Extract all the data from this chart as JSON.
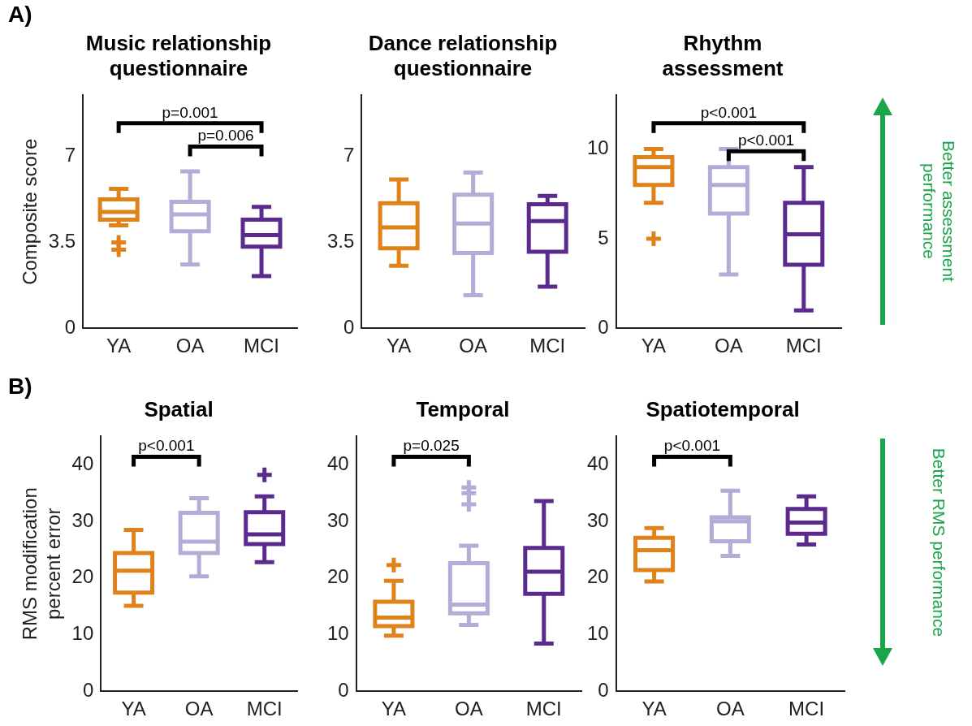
{
  "chart_data": [
    {
      "type": "box",
      "title": "Music relationship questionnaire",
      "ylabel": "Composite score",
      "categories": [
        "YA",
        "OA",
        "MCI"
      ],
      "colors": [
        "#e0821a",
        "#b3acd6",
        "#5b2a8e"
      ],
      "ylim": [
        0,
        9.5
      ],
      "yticks": [
        0,
        3.5,
        7
      ],
      "annotations": [
        "A)",
        "p=0.001",
        "p=0.006"
      ],
      "boxes": [
        {
          "low": 4.2,
          "q1": 4.43,
          "median": 4.74,
          "q3": 5.26,
          "high": 5.69,
          "outliers": [
            3.5,
            3.2
          ]
        },
        {
          "low": 2.6,
          "q1": 3.96,
          "median": 4.64,
          "q3": 5.16,
          "high": 6.4
        },
        {
          "low": 2.13,
          "q1": 3.33,
          "median": 3.8,
          "q3": 4.43,
          "high": 4.95
        }
      ]
    },
    {
      "type": "box",
      "title": "Dance relationship questionnaire",
      "categories": [
        "YA",
        "OA",
        "MCI"
      ],
      "colors": [
        "#e0821a",
        "#b3acd6",
        "#5b2a8e"
      ],
      "ylim": [
        0,
        9.5
      ],
      "yticks": [
        0,
        3.5,
        7
      ],
      "boxes": [
        {
          "low": 2.55,
          "q1": 3.26,
          "median": 4.11,
          "q3": 5.1,
          "high": 6.07
        },
        {
          "low": 1.35,
          "q1": 3.07,
          "median": 4.27,
          "q3": 5.45,
          "high": 6.35
        },
        {
          "low": 1.7,
          "q1": 3.12,
          "median": 4.37,
          "q3": 5.06,
          "high": 5.4
        }
      ]
    },
    {
      "type": "box",
      "title": "Rhythm assessment",
      "categories": [
        "YA",
        "OA",
        "MCI"
      ],
      "colors": [
        "#e0821a",
        "#b3acd6",
        "#5b2a8e"
      ],
      "ylim": [
        0,
        13
      ],
      "yticks": [
        0,
        5,
        10
      ],
      "annotations": [
        "p<0.001",
        "p<0.001",
        "Better assessment performance"
      ],
      "boxes": [
        {
          "low": 7,
          "q1": 8,
          "median": 9,
          "q3": 9.55,
          "high": 10,
          "outliers": [
            5
          ]
        },
        {
          "low": 3,
          "q1": 6.4,
          "median": 8,
          "q3": 9,
          "high": 10
        },
        {
          "low": 1,
          "q1": 3.55,
          "median": 5.25,
          "q3": 7,
          "high": 9
        }
      ]
    },
    {
      "type": "box",
      "title": "Spatial",
      "ylabel": "RMS modification percent error",
      "categories": [
        "YA",
        "OA",
        "MCI"
      ],
      "colors": [
        "#e0821a",
        "#b3acd6",
        "#5b2a8e"
      ],
      "ylim": [
        0,
        45
      ],
      "yticks": [
        0,
        10,
        20,
        30,
        40
      ],
      "annotations": [
        "B)",
        "p<0.001"
      ],
      "boxes": [
        {
          "low": 15.1,
          "q1": 17.4,
          "median": 21.3,
          "q3": 24.4,
          "high": 28.5
        },
        {
          "low": 20.3,
          "q1": 24.4,
          "median": 26.4,
          "q3": 31.5,
          "high": 34.1
        },
        {
          "low": 22.8,
          "q1": 26,
          "median": 27.7,
          "q3": 31.6,
          "high": 34.4,
          "outliers": [
            38.2
          ]
        }
      ]
    },
    {
      "type": "box",
      "title": "Temporal",
      "categories": [
        "YA",
        "OA",
        "MCI"
      ],
      "colors": [
        "#e0821a",
        "#b3acd6",
        "#5b2a8e"
      ],
      "ylim": [
        0,
        45
      ],
      "yticks": [
        0,
        10,
        20,
        30,
        40
      ],
      "annotations": [
        "p=0.025"
      ],
      "boxes": [
        {
          "low": 9.8,
          "q1": 11.5,
          "median": 13,
          "q3": 15.8,
          "high": 19.5,
          "outliers": [
            22.3
          ]
        },
        {
          "low": 11.7,
          "q1": 13.75,
          "median": 15.3,
          "q3": 22.6,
          "high": 25.7,
          "outliers": [
            36,
            35,
            33
          ]
        },
        {
          "low": 8.4,
          "q1": 17.2,
          "median": 21.1,
          "q3": 25.3,
          "high": 33.6
        }
      ]
    },
    {
      "type": "box",
      "title": "Spatiotemporal",
      "categories": [
        "YA",
        "OA",
        "MCI"
      ],
      "colors": [
        "#e0821a",
        "#b3acd6",
        "#5b2a8e"
      ],
      "ylim": [
        0,
        45
      ],
      "yticks": [
        0,
        10,
        20,
        30,
        40
      ],
      "annotations": [
        "p<0.001",
        "Better RMS performance"
      ],
      "boxes": [
        {
          "low": 19.4,
          "q1": 21.4,
          "median": 24.9,
          "q3": 27.1,
          "high": 28.8
        },
        {
          "low": 23.9,
          "q1": 26.5,
          "median": 30,
          "q3": 30.7,
          "high": 35.4
        },
        {
          "low": 25.9,
          "q1": 27.8,
          "median": 29.8,
          "q3": 32.2,
          "high": 34.4
        }
      ]
    }
  ]
}
